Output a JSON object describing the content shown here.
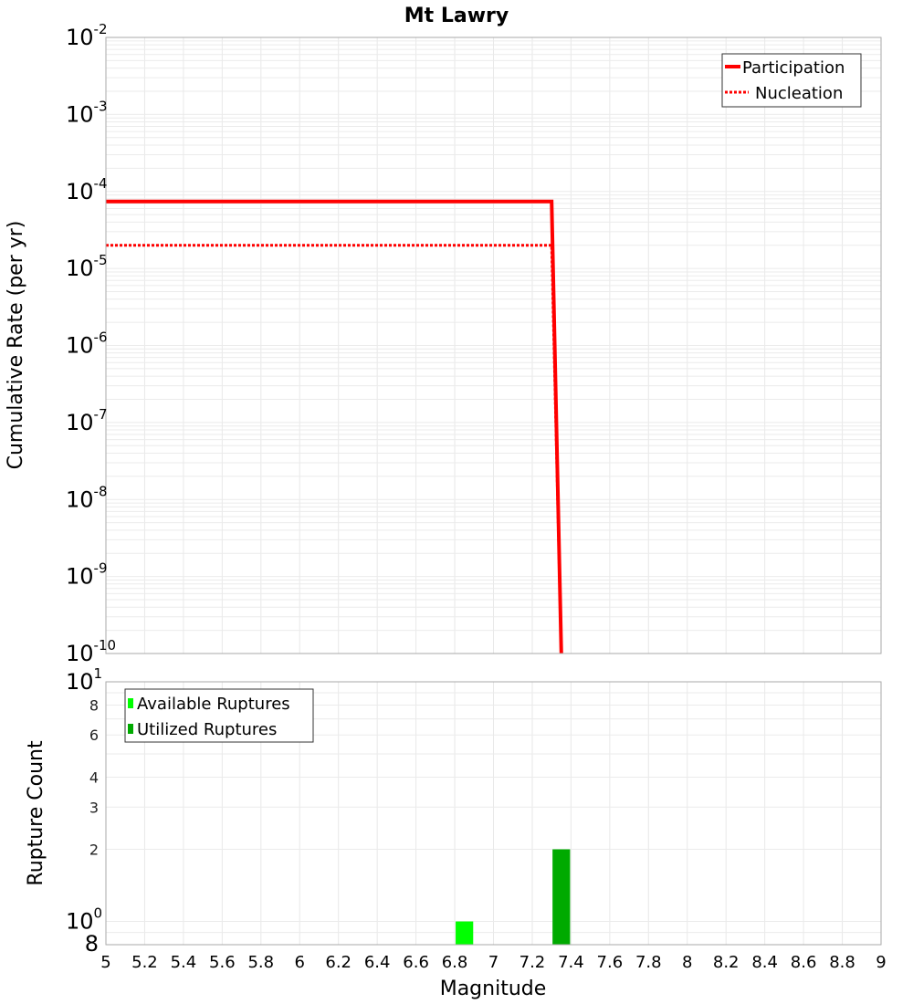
{
  "chart_data": [
    {
      "type": "line",
      "title": "Mt Lawry",
      "xlabel": "Magnitude",
      "ylabel": "Cumulative Rate (per yr)",
      "yscale": "log",
      "xlim": [
        5,
        9
      ],
      "ylim": [
        1e-10,
        0.01
      ],
      "grid": true,
      "legend_position": "top-right",
      "y_ticks": [
        {
          "base": "10",
          "exp": "-2"
        },
        {
          "base": "10",
          "exp": "-3"
        },
        {
          "base": "10",
          "exp": "-4"
        },
        {
          "base": "10",
          "exp": "-5"
        },
        {
          "base": "10",
          "exp": "-6"
        },
        {
          "base": "10",
          "exp": "-7"
        },
        {
          "base": "10",
          "exp": "-8"
        },
        {
          "base": "10",
          "exp": "-9"
        },
        {
          "base": "10",
          "exp": "-10"
        }
      ],
      "series": [
        {
          "name": "Participation",
          "style": "solid",
          "color": "#ff0000",
          "x": [
            5.0,
            7.3,
            7.35
          ],
          "y": [
            7.4e-05,
            7.4e-05,
            1e-10
          ]
        },
        {
          "name": "Nucleation",
          "style": "dotted",
          "color": "#ff0000",
          "x": [
            5.0,
            7.3,
            7.35
          ],
          "y": [
            2e-05,
            2e-05,
            1e-10
          ]
        }
      ]
    },
    {
      "type": "bar",
      "xlabel": "Magnitude",
      "ylabel": "Rupture Count",
      "yscale": "log",
      "xlim": [
        5,
        9
      ],
      "ylim": [
        0.8,
        10
      ],
      "grid": true,
      "legend_position": "top-left",
      "x_ticks": [
        "5",
        "5.2",
        "5.4",
        "5.6",
        "5.8",
        "6",
        "6.2",
        "6.4",
        "6.6",
        "6.8",
        "7",
        "7.2",
        "7.4",
        "7.6",
        "7.8",
        "8",
        "8.2",
        "8.4",
        "8.6",
        "8.8",
        "9"
      ],
      "y_ticks_major": [
        {
          "base": "10",
          "exp": "1",
          "value": 10
        },
        {
          "base": "10",
          "exp": "0",
          "value": 1
        }
      ],
      "y_ticks_minor": [
        {
          "label": "8",
          "value": 8
        },
        {
          "label": "6",
          "value": 6
        },
        {
          "label": "4",
          "value": 4
        },
        {
          "label": "3",
          "value": 3
        },
        {
          "label": "2",
          "value": 2
        }
      ],
      "y_bottom_label": {
        "label": "8",
        "value": 0.8
      },
      "series": [
        {
          "name": "Available Ruptures",
          "color": "#00ff00",
          "bins": [
            {
              "x0": 6.8,
              "x1": 6.9,
              "count": 1
            }
          ]
        },
        {
          "name": "Utilized Ruptures",
          "color": "#00aa00",
          "bins": [
            {
              "x0": 7.3,
              "x1": 7.4,
              "count": 2
            }
          ]
        }
      ]
    }
  ],
  "labels": {
    "title": "Mt Lawry",
    "top_ylabel": "Cumulative Rate (per yr)",
    "bottom_ylabel": "Rupture Count",
    "xlabel": "Magnitude",
    "legend_top": [
      "Participation",
      "Nucleation"
    ],
    "legend_bottom": [
      "Available Ruptures",
      "Utilized Ruptures"
    ]
  }
}
